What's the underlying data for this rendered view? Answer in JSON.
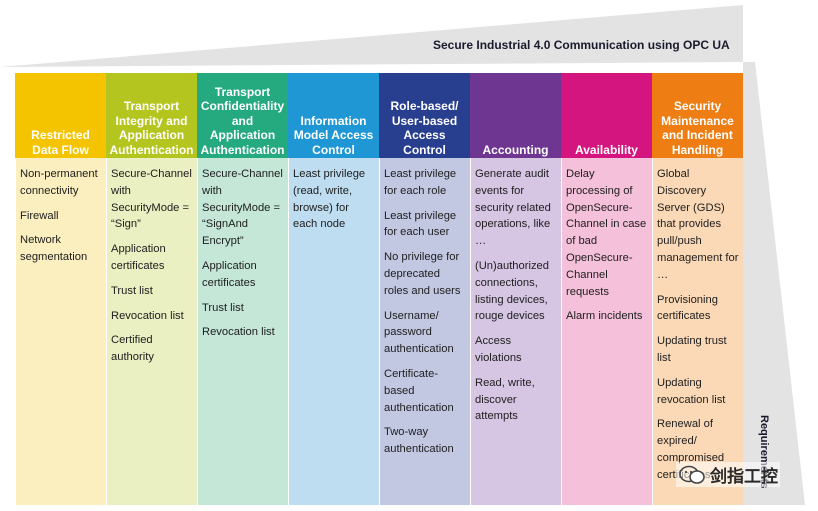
{
  "banner": {
    "title": "Secure Industrial 4.0 Communication using OPC UA"
  },
  "side_label": "Requirements",
  "columns": [
    {
      "header": "Restricted Data Flow",
      "head_color": "#F5C400",
      "body_color": "#FCEFBF",
      "items": [
        "Non-permanent connectivity",
        "Firewall",
        "Network segmentation"
      ]
    },
    {
      "header": "Transport Integrity and Application Authentication",
      "head_color": "#B3C51E",
      "body_color": "#EAF0C2",
      "items": [
        "Secure-Channel with SecurityMode = “Sign”",
        "Application certificates",
        "Trust list",
        "Revocation list",
        "Certified authority"
      ]
    },
    {
      "header": "Transport Confidentiality and Application Authentication",
      "head_color": "#25A97E",
      "body_color": "#C4E7D8",
      "items": [
        "Secure-Channel with SecurityMode = “SignAnd Encrypt”",
        "Application certificates",
        "Trust list",
        "Revocation list"
      ]
    },
    {
      "header": "Information Model Access Control",
      "head_color": "#1F97D4",
      "body_color": "#BEDDF1",
      "items": [
        "Least privilege (read, write, browse) for each node"
      ]
    },
    {
      "header": "Role-based/ User-based Access Control",
      "head_color": "#283E8E",
      "body_color": "#C2C8E2",
      "items": [
        "Least privilege for each role",
        "Least privilege for each user",
        "No privilege for deprecated roles and users",
        "Username/ password authentication",
        "Certificate-based authentication",
        "Two-way authentication"
      ]
    },
    {
      "header": "Accounting",
      "head_color": "#6E3591",
      "body_color": "#D6C5E3",
      "items": [
        "Generate audit events for security related operations, like …",
        "(Un)authorized connections, listing devices, rouge devices",
        "Access violations",
        "Read, write, discover attempts"
      ]
    },
    {
      "header": "Availability",
      "head_color": "#D5157F",
      "body_color": "#F4C0DA",
      "items": [
        "Delay processing of OpenSecure-Channel in case of bad OpenSecure-Channel requests",
        "Alarm incidents"
      ]
    },
    {
      "header": "Security Maintenance and Incident Handling",
      "head_color": "#EE7D13",
      "body_color": "#FCD9B6",
      "items": [
        "Global Discovery Server (GDS) that provides pull/push management for …",
        "Provisioning certificates",
        "Updating trust list",
        "Updating revocation list",
        "Renewal of expired/ compromised certificates"
      ]
    }
  ],
  "watermark": {
    "text": "剑指工控"
  }
}
